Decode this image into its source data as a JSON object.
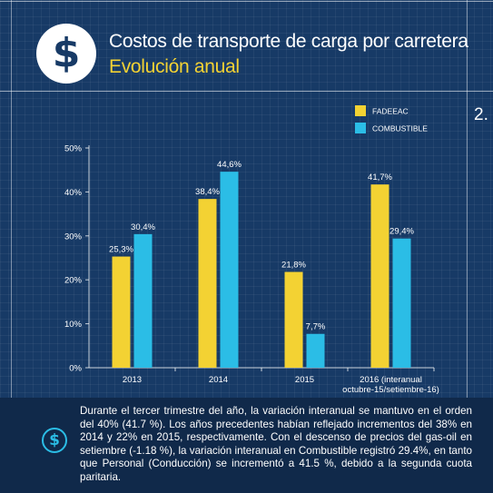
{
  "header": {
    "title": "Costos de transporte de carga por carretera",
    "subtitle": "Evolución anual",
    "logo_symbol": "$",
    "page_number": "2."
  },
  "chart_data": {
    "type": "bar",
    "categories": [
      "2013",
      "2014",
      "2015",
      "2016 (interanual|octubre-15/setiembre-16)"
    ],
    "series": [
      {
        "name": "FADEEAC",
        "color": "#f3d233",
        "values": [
          25.3,
          38.4,
          21.8,
          41.7
        ],
        "labels": [
          "25,3%",
          "38,4%",
          "21,8%",
          "41,7%"
        ]
      },
      {
        "name": "COMBUSTIBLE",
        "color": "#2bbde6",
        "values": [
          30.4,
          44.6,
          7.7,
          29.4
        ],
        "labels": [
          "30,4%",
          "44,6%",
          "7,7%",
          "29,4%"
        ]
      }
    ],
    "yticks": [
      "0%",
      "10%",
      "20%",
      "30%",
      "40%",
      "50%"
    ],
    "ylim": [
      0,
      50
    ],
    "legend_position": "top-right",
    "grid": false
  },
  "footer": {
    "icon": "dollar-circle-icon",
    "text": "Durante el tercer trimestre del año, la variación interanual se mantuvo en el orden del 40% (41.7 %). Los años precedentes habían reflejado incrementos del 38% en 2014 y 22% en 2015, respectivamente. Con el descenso de precios del gas-oil en setiembre (-1.18 %), la variación interanual en Combustible registró 29.4%, en tanto que Personal (Conducción) se incrementó a 41.5 %, debido a la segunda cuota paritaria."
  }
}
